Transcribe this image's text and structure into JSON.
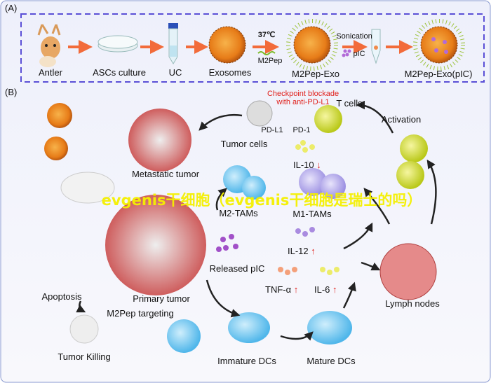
{
  "panel_a": {
    "label": "(A)",
    "steps": [
      "Antler",
      "ASCs culture",
      "UC",
      "Exosomes",
      "M2Pep-Exo",
      "M2Pep-Exo(pIC)"
    ],
    "temperature": "37℃",
    "peptide": "M2Pep",
    "sonication": "Sonication",
    "pic": "pIC"
  },
  "panel_b": {
    "label": "(B)",
    "checkpoint_line1": "Checkpoint blockade",
    "checkpoint_line2": "with anti-PD-L1",
    "t_cells": "T cells",
    "pd_l1": "PD-L1",
    "pd_1": "PD-1",
    "tumor_cells": "Tumor cells",
    "activation": "Activation",
    "metastatic_tumor": "Metastatic tumor",
    "il10": "IL-10",
    "m2_tams": "M2-TAMs",
    "m1_tams": "M1-TAMs",
    "il12": "IL-12",
    "released_pic": "Released pIC",
    "tnf": "TNF-α",
    "il6": "IL-6",
    "lymph_nodes": "Lymph nodes",
    "apoptosis": "Apoptosis",
    "primary_tumor": "Primary tumor",
    "m2pep_targeting": "M2Pep targeting",
    "tumor_killing": "Tumor Killing",
    "immature_dcs": "Immature DCs",
    "mature_dcs": "Mature DCs",
    "up_arrow": "↑",
    "down_arrow": "↓"
  },
  "watermark": "evgenis干细胞（evgenis干细胞是瑞士的吗）",
  "colors": {
    "arrow_orange": "#f26b3a",
    "dashed_border": "#5a4fd6",
    "red_text": "#e0201b",
    "watermark": "#f5f000"
  }
}
